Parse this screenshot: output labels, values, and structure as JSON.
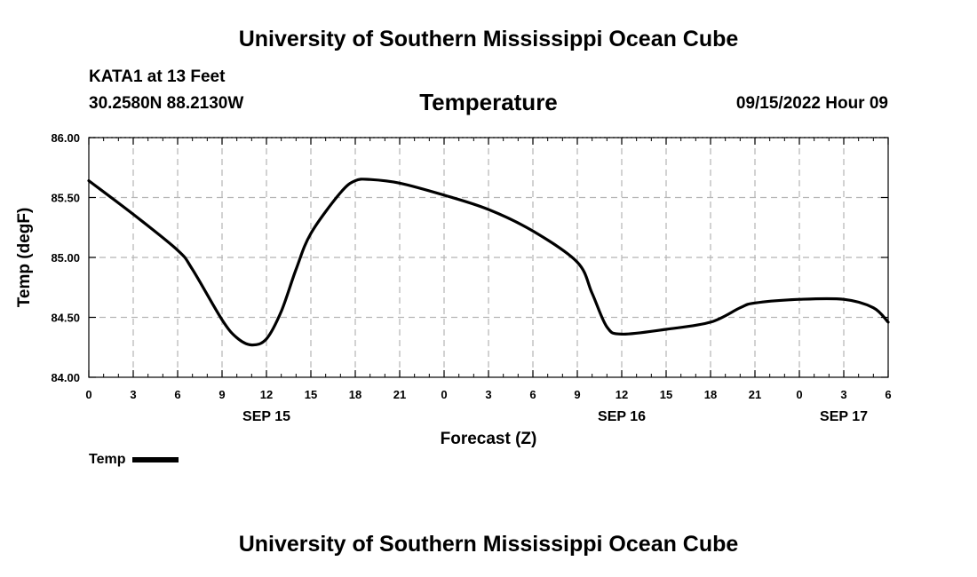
{
  "header": {
    "title": "University of Southern Mississippi Ocean Cube",
    "station": "KATA1 at 13 Feet",
    "coords": "30.2580N  88.2130W",
    "variable": "Temperature",
    "issued": "09/15/2022 Hour 09"
  },
  "footer": {
    "title": "University of Southern Mississippi Ocean Cube"
  },
  "legend": {
    "label": "Temp"
  },
  "chart_data": {
    "type": "line",
    "title": "Temperature",
    "xlabel": "Forecast (Z)",
    "ylabel": "Temp (degF)",
    "xlim": [
      0,
      54
    ],
    "ylim": [
      84.0,
      86.0
    ],
    "grid": true,
    "x_ticks": [
      {
        "x": 0,
        "label": "0"
      },
      {
        "x": 3,
        "label": "3"
      },
      {
        "x": 6,
        "label": "6"
      },
      {
        "x": 9,
        "label": "9"
      },
      {
        "x": 12,
        "label": "12"
      },
      {
        "x": 15,
        "label": "15"
      },
      {
        "x": 18,
        "label": "18"
      },
      {
        "x": 21,
        "label": "21"
      },
      {
        "x": 24,
        "label": "0"
      },
      {
        "x": 27,
        "label": "3"
      },
      {
        "x": 30,
        "label": "6"
      },
      {
        "x": 33,
        "label": "9"
      },
      {
        "x": 36,
        "label": "12"
      },
      {
        "x": 39,
        "label": "15"
      },
      {
        "x": 42,
        "label": "18"
      },
      {
        "x": 45,
        "label": "21"
      },
      {
        "x": 48,
        "label": "0"
      },
      {
        "x": 51,
        "label": "3"
      },
      {
        "x": 54,
        "label": "6"
      }
    ],
    "y_ticks": [
      {
        "y": 84.0,
        "label": "84.00"
      },
      {
        "y": 84.5,
        "label": "84.50"
      },
      {
        "y": 85.0,
        "label": "85.00"
      },
      {
        "y": 85.5,
        "label": "85.50"
      },
      {
        "y": 86.0,
        "label": "86.00"
      }
    ],
    "date_labels": [
      {
        "x": 12,
        "label": "SEP 15"
      },
      {
        "x": 36,
        "label": "SEP 16"
      },
      {
        "x": 51,
        "label": "SEP 17"
      }
    ],
    "series": [
      {
        "name": "Temp",
        "color": "#000000",
        "x": [
          0,
          3,
          6,
          7,
          9,
          10,
          11,
          12,
          13,
          14,
          15,
          17,
          18,
          19,
          21,
          24,
          27,
          30,
          33,
          34,
          35,
          36,
          39,
          42,
          44,
          45,
          48,
          51,
          53,
          54
        ],
        "y": [
          85.64,
          85.36,
          85.06,
          84.9,
          84.48,
          84.33,
          84.27,
          84.32,
          84.55,
          84.9,
          85.2,
          85.54,
          85.64,
          85.65,
          85.62,
          85.52,
          85.4,
          85.22,
          84.96,
          84.7,
          84.42,
          84.36,
          84.4,
          84.46,
          84.58,
          84.62,
          84.65,
          84.65,
          84.58,
          84.46
        ]
      }
    ]
  }
}
